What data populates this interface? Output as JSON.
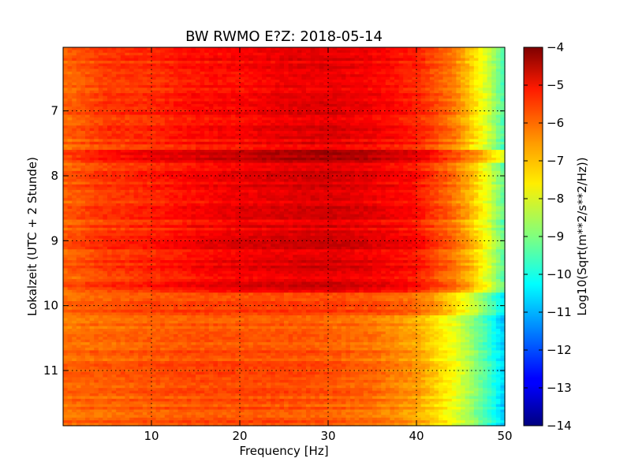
{
  "chart_data": {
    "type": "heatmap",
    "title": "BW RWMO E?Z: 2018-05-14",
    "xlabel": "Frequency [Hz]",
    "ylabel": "Lokalzeit (UTC + 2 Stunde)",
    "xlim": [
      0,
      50
    ],
    "ylim_local_hours": [
      6.02,
      11.85
    ],
    "y_axis_inverted": true,
    "x_ticks": [
      10,
      20,
      30,
      40,
      50
    ],
    "x_tick_labels": [
      "10",
      "20",
      "30",
      "40",
      "50"
    ],
    "y_ticks": [
      7,
      8,
      9,
      10,
      11
    ],
    "y_tick_labels": [
      "7",
      "8",
      "9",
      "10",
      "11"
    ],
    "grid": true,
    "colormap": "jet",
    "colorbar": {
      "label": "Log10(Sqrt(m**2/s**2/Hz))",
      "range": [
        -14,
        -4
      ],
      "ticks": [
        -4,
        -5,
        -6,
        -7,
        -8,
        -9,
        -10,
        -11,
        -12,
        -13,
        -14
      ],
      "tick_labels": [
        "−4",
        "−5",
        "−6",
        "−7",
        "−8",
        "−9",
        "−10",
        "−11",
        "−12",
        "−13",
        "−14"
      ]
    },
    "frequency_bands_hz": [
      0,
      5,
      10,
      15,
      20,
      25,
      30,
      35,
      40,
      42,
      44,
      46,
      48,
      50
    ],
    "time_segments": [
      {
        "from_h": 6.02,
        "to_h": 7.6,
        "level": [
          -6.3,
          -5.8,
          -5.7,
          -5.4,
          -5.3,
          -5.1,
          -5.0,
          -5.2,
          -5.6,
          -6.0,
          -6.4,
          -7.2,
          -8.2,
          -9.6
        ]
      },
      {
        "from_h": 7.6,
        "to_h": 7.8,
        "level": [
          -5.9,
          -5.4,
          -5.1,
          -4.9,
          -4.7,
          -4.5,
          -4.4,
          -4.6,
          -5.0,
          -5.4,
          -5.9,
          -6.4,
          -7.2,
          -8.2
        ]
      },
      {
        "from_h": 7.8,
        "to_h": 9.8,
        "level": [
          -6.2,
          -5.8,
          -5.6,
          -5.3,
          -5.1,
          -5.0,
          -4.9,
          -5.1,
          -5.4,
          -5.9,
          -6.3,
          -7.0,
          -8.0,
          -9.4
        ]
      },
      {
        "from_h": 9.8,
        "to_h": 10.15,
        "level": [
          -6.2,
          -6.0,
          -5.9,
          -5.8,
          -5.8,
          -5.8,
          -5.8,
          -5.9,
          -6.2,
          -6.6,
          -7.2,
          -8.0,
          -9.0,
          -10.4
        ]
      },
      {
        "from_h": 10.15,
        "to_h": 11.85,
        "level": [
          -6.3,
          -6.2,
          -6.1,
          -6.0,
          -6.0,
          -6.0,
          -6.1,
          -6.3,
          -6.8,
          -7.3,
          -7.8,
          -8.6,
          -9.6,
          -10.8
        ]
      }
    ]
  }
}
